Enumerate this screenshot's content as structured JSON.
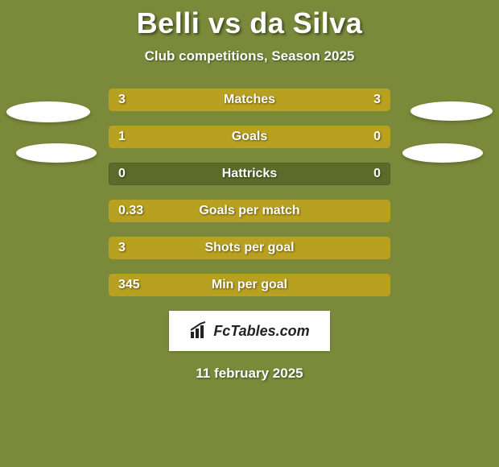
{
  "colors": {
    "page_bg": "#7a8a3a",
    "title_color": "#ffffff",
    "subtitle_color": "#ffffff",
    "ellipse_bg": "#ffffff",
    "bar_track_bg": "#5d6b2a",
    "bar_fill_left": "#b8a020",
    "bar_fill_right": "#b8a020",
    "value_text": "#ffffff",
    "label_text": "#ffffff",
    "footer_color": "#ffffff"
  },
  "header": {
    "title": "Belli vs da Silva",
    "subtitle": "Club competitions, Season 2025"
  },
  "bars": [
    {
      "label": "Matches",
      "left": "3",
      "right": "3",
      "left_pct": 50,
      "right_pct": 50
    },
    {
      "label": "Goals",
      "left": "1",
      "right": "0",
      "left_pct": 75,
      "right_pct": 25
    },
    {
      "label": "Hattricks",
      "left": "0",
      "right": "0",
      "left_pct": 0,
      "right_pct": 0
    },
    {
      "label": "Goals per match",
      "left": "0.33",
      "right": "",
      "left_pct": 100,
      "right_pct": 0
    },
    {
      "label": "Shots per goal",
      "left": "3",
      "right": "",
      "left_pct": 100,
      "right_pct": 0
    },
    {
      "label": "Min per goal",
      "left": "345",
      "right": "",
      "left_pct": 100,
      "right_pct": 0
    }
  ],
  "logo": {
    "text": "FcTables.com"
  },
  "footer": {
    "date": "11 february 2025"
  }
}
